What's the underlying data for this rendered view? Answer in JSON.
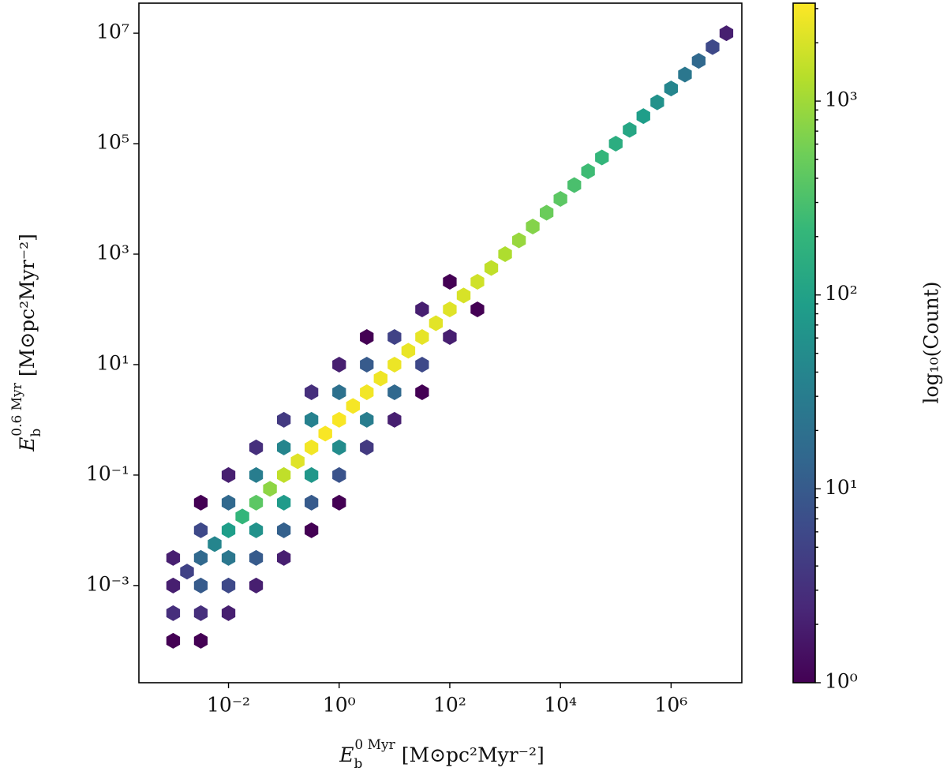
{
  "chart_data": {
    "type": "hexbin",
    "xlabel": {
      "base": "E",
      "sub": "b",
      "sup": "0 Myr",
      "unit": "[M⊙pc²Myr⁻²]"
    },
    "ylabel": {
      "base": "E",
      "sub": "b",
      "sup": "0.6 Myr",
      "unit": "[M⊙pc²Myr⁻²]"
    },
    "xscale": "log",
    "yscale": "log",
    "xlim": [
      0.00024,
      19000000
    ],
    "ylim": [
      1.74e-05,
      35000000
    ],
    "xticks": [
      {
        "value": 0.01,
        "label": "10⁻²"
      },
      {
        "value": 1,
        "label": "10⁰"
      },
      {
        "value": 100,
        "label": "10²"
      },
      {
        "value": 10000,
        "label": "10⁴"
      },
      {
        "value": 1000000,
        "label": "10⁶"
      }
    ],
    "yticks": [
      {
        "value": 0.001,
        "label": "10⁻³"
      },
      {
        "value": 0.1,
        "label": "10⁻¹"
      },
      {
        "value": 10,
        "label": "10¹"
      },
      {
        "value": 1000,
        "label": "10³"
      },
      {
        "value": 100000,
        "label": "10⁵"
      },
      {
        "value": 10000000,
        "label": "10⁷"
      }
    ],
    "grid": false,
    "x": [
      0.001,
      0.00178,
      0.00316,
      0.00562,
      0.01,
      0.0178,
      0.0316,
      0.0562,
      0.1,
      0.178,
      0.316,
      0.562,
      1,
      1.78,
      3.16,
      5.62,
      10,
      17.8,
      31.6,
      56.2,
      100,
      178,
      316,
      562,
      1000,
      1780,
      3160,
      5620,
      10000,
      17800,
      31600,
      56200,
      100000,
      178000,
      316000,
      562000,
      1000000,
      1780000,
      3160000,
      5620000,
      10000000,
      0.001,
      0.001,
      0.001,
      0.00316,
      0.00316,
      0.00316,
      0.00316,
      0.00316,
      0.01,
      0.01,
      0.01,
      0.01,
      0.01,
      0.0316,
      0.0316,
      0.0316,
      0.0316,
      0.0316,
      0.1,
      0.1,
      0.1,
      0.1,
      0.1,
      0.316,
      0.316,
      0.316,
      0.316,
      0.316,
      1,
      1,
      1,
      1,
      1,
      3.16,
      3.16,
      3.16,
      3.16,
      10,
      10,
      10,
      31.6,
      31.6,
      31.6,
      100,
      100,
      316
    ],
    "y": [
      0.001,
      0.00178,
      0.00316,
      0.00562,
      0.01,
      0.0178,
      0.0316,
      0.0562,
      0.1,
      0.178,
      0.316,
      0.562,
      1,
      1.78,
      3.16,
      5.62,
      10,
      17.8,
      31.6,
      56.2,
      100,
      178,
      316,
      562,
      1000,
      1780,
      3160,
      5620,
      10000,
      17800,
      31600,
      56200,
      100000,
      178000,
      316000,
      562000,
      1000000,
      1780000,
      3160000,
      5620000,
      10000000,
      0.0001,
      0.000316,
      0.00316,
      0.0001,
      0.000316,
      0.001,
      0.01,
      0.0316,
      0.000316,
      0.001,
      0.00316,
      0.0316,
      0.1,
      0.001,
      0.00316,
      0.01,
      0.1,
      0.316,
      0.00316,
      0.01,
      0.0316,
      0.316,
      1,
      0.01,
      0.0316,
      0.1,
      1,
      3.16,
      0.0316,
      0.1,
      0.316,
      3.16,
      10,
      0.316,
      1,
      10,
      31.6,
      1,
      3.16,
      31.6,
      3.16,
      10,
      100,
      31.6,
      316,
      100
    ],
    "values": [
      2,
      5,
      15,
      40,
      90,
      200,
      400,
      800,
      1500,
      2200,
      2800,
      3000,
      3000,
      2900,
      2800,
      2700,
      2600,
      2500,
      2400,
      2300,
      2200,
      2000,
      1800,
      1500,
      1200,
      900,
      700,
      500,
      400,
      300,
      250,
      200,
      150,
      120,
      90,
      60,
      40,
      25,
      15,
      6,
      2,
      1,
      3,
      2,
      1,
      3,
      10,
      6,
      1,
      2,
      6,
      25,
      15,
      2,
      2,
      10,
      60,
      30,
      3,
      2,
      12,
      80,
      40,
      4,
      1,
      10,
      70,
      35,
      3,
      1,
      8,
      50,
      20,
      2,
      4,
      30,
      10,
      1,
      2,
      15,
      5,
      1,
      6,
      2,
      2,
      1,
      1
    ],
    "colormap": [
      "#440154",
      "#482878",
      "#3e4989",
      "#31688e",
      "#26828e",
      "#1f9e89",
      "#35b779",
      "#6ece58",
      "#b5de2b",
      "#fde725"
    ],
    "colorbar": {
      "label": "log₁₀(Count)",
      "scale": "log",
      "lim": [
        1,
        3200
      ],
      "ticks": [
        {
          "value": 1,
          "label": "10⁰"
        },
        {
          "value": 10,
          "label": "10¹"
        },
        {
          "value": 100,
          "label": "10²"
        },
        {
          "value": 1000,
          "label": "10³"
        }
      ],
      "minor_ticks": [
        2,
        3,
        4,
        5,
        6,
        7,
        8,
        9,
        20,
        30,
        40,
        50,
        60,
        70,
        80,
        90,
        200,
        300,
        400,
        500,
        600,
        700,
        800,
        900,
        2000,
        3000
      ]
    }
  }
}
